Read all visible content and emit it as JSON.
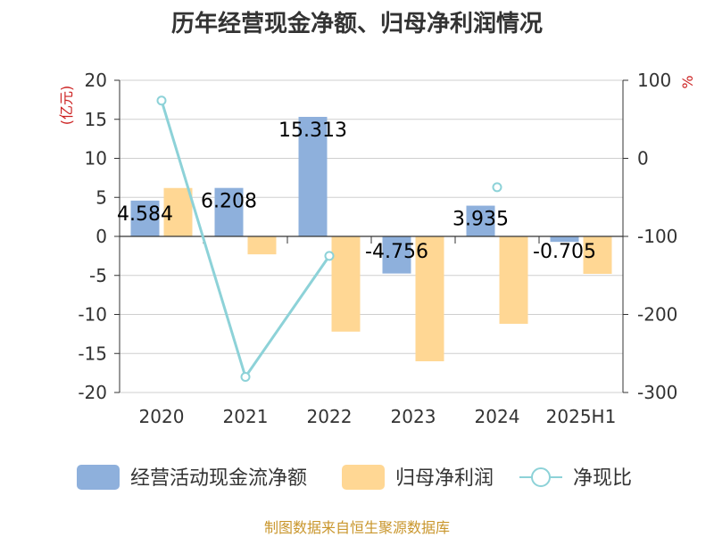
{
  "title": "历年经营现金净额、归母净利润情况",
  "source": "制图数据来自恒生聚源数据库",
  "chart_data": {
    "type": "bar",
    "categories": [
      "2020",
      "2021",
      "2022",
      "2023",
      "2024",
      "2025H1"
    ],
    "y_left": {
      "unit_label": "(亿元)",
      "range": [
        -20,
        20
      ],
      "ticks": [
        -20,
        -15,
        -10,
        -5,
        0,
        5,
        10,
        15,
        20
      ]
    },
    "y_right": {
      "unit_label": "%",
      "range": [
        -300,
        100
      ],
      "ticks": [
        -300,
        -200,
        -100,
        0,
        100
      ]
    },
    "grid": true,
    "legend_position": "bottom",
    "series": [
      {
        "name": "经营活动现金流净额",
        "type": "bar",
        "axis": "left",
        "color": "#8eb0dc",
        "values": [
          4.584,
          6.208,
          15.313,
          -4.756,
          3.935,
          -0.705
        ],
        "labels": [
          "4.584",
          "6.208",
          "15.313",
          "-4.756",
          "3.935",
          "-0.705"
        ]
      },
      {
        "name": "归母净利润",
        "type": "bar",
        "axis": "left",
        "color": "#ffd794",
        "values": [
          6.2,
          -2.3,
          -12.2,
          -16.0,
          -11.2,
          -4.8
        ]
      },
      {
        "name": "净现比",
        "type": "line",
        "axis": "right",
        "color": "#8dd2d8",
        "values": [
          74,
          -280,
          -125,
          null,
          -37,
          null
        ]
      }
    ]
  }
}
